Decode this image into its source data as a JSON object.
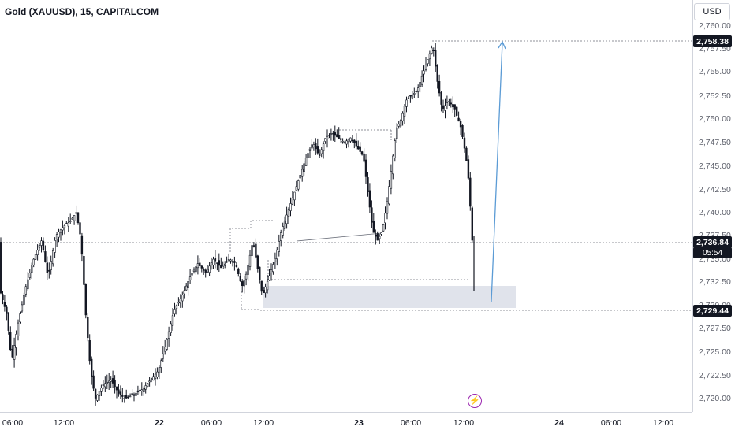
{
  "header": {
    "symbol_title": "Gold (XAUUSD), 15, CAPITALCOM",
    "currency": "USD"
  },
  "price_axis": {
    "ticks": [
      "2,760.00",
      "2,757.50",
      "2,755.00",
      "2,752.50",
      "2,750.00",
      "2,747.50",
      "2,745.00",
      "2,742.50",
      "2,740.00",
      "2,737.50",
      "2,735.00",
      "2,732.50",
      "2,730.00",
      "2,727.50",
      "2,725.00",
      "2,722.50",
      "2,720.00"
    ],
    "tags": {
      "high": "2,758.38",
      "current": "2,736.84",
      "low": "2,729.44"
    },
    "countdown": "05:54"
  },
  "time_axis": {
    "labels": [
      "06:00",
      "12:00",
      "22",
      "06:00",
      "12:00",
      "23",
      "06:00",
      "12:00",
      "24",
      "06:00",
      "12:00"
    ]
  },
  "events": {
    "icon": "lightning-icon"
  },
  "colors": {
    "candle": "#131722",
    "arrow": "#5b9bd5",
    "zone": "#e0e3eb",
    "background": "#ffffff"
  }
}
